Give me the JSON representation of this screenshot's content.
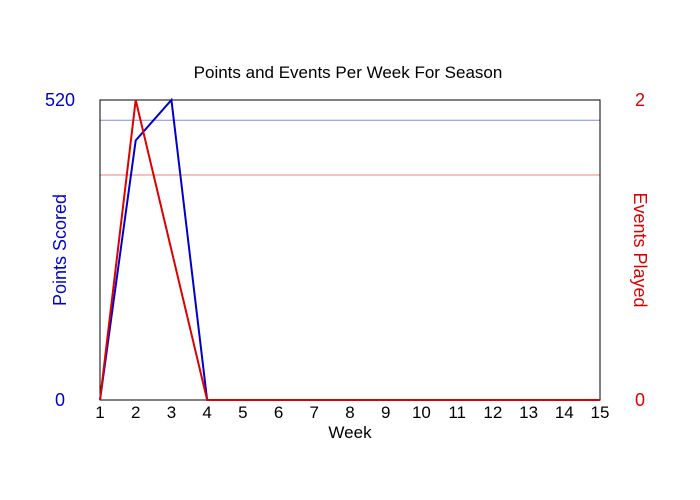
{
  "chart_data": {
    "type": "line",
    "title": "Points and Events Per Week For Season",
    "xlabel": "Week",
    "ylabel_left": "Points Scored",
    "ylabel_right": "Events Played",
    "x": [
      1,
      2,
      3,
      4,
      5,
      6,
      7,
      8,
      9,
      10,
      11,
      12,
      13,
      14,
      15
    ],
    "xlim": [
      1,
      15
    ],
    "ylim_left": [
      0,
      520
    ],
    "ylim_right": [
      0,
      2
    ],
    "yticks_left": [
      "0",
      "520"
    ],
    "yticks_right": [
      "0",
      "2"
    ],
    "series": [
      {
        "name": "Points Scored",
        "axis": "left",
        "color": "#0000cc",
        "values": [
          0,
          450,
          520,
          0,
          0,
          0,
          0,
          0,
          0,
          0,
          0,
          0,
          0,
          0,
          0
        ]
      },
      {
        "name": "Events Played",
        "axis": "right",
        "color": "#dd0000",
        "values": [
          0,
          2,
          1,
          0,
          0,
          0,
          0,
          0,
          0,
          0,
          0,
          0,
          0,
          0,
          0
        ]
      }
    ],
    "reference_lines": [
      {
        "axis": "left",
        "value": 485,
        "color": "#8888ee"
      },
      {
        "axis": "right",
        "value": 1.5,
        "color": "#f08080"
      }
    ],
    "grid": false
  }
}
